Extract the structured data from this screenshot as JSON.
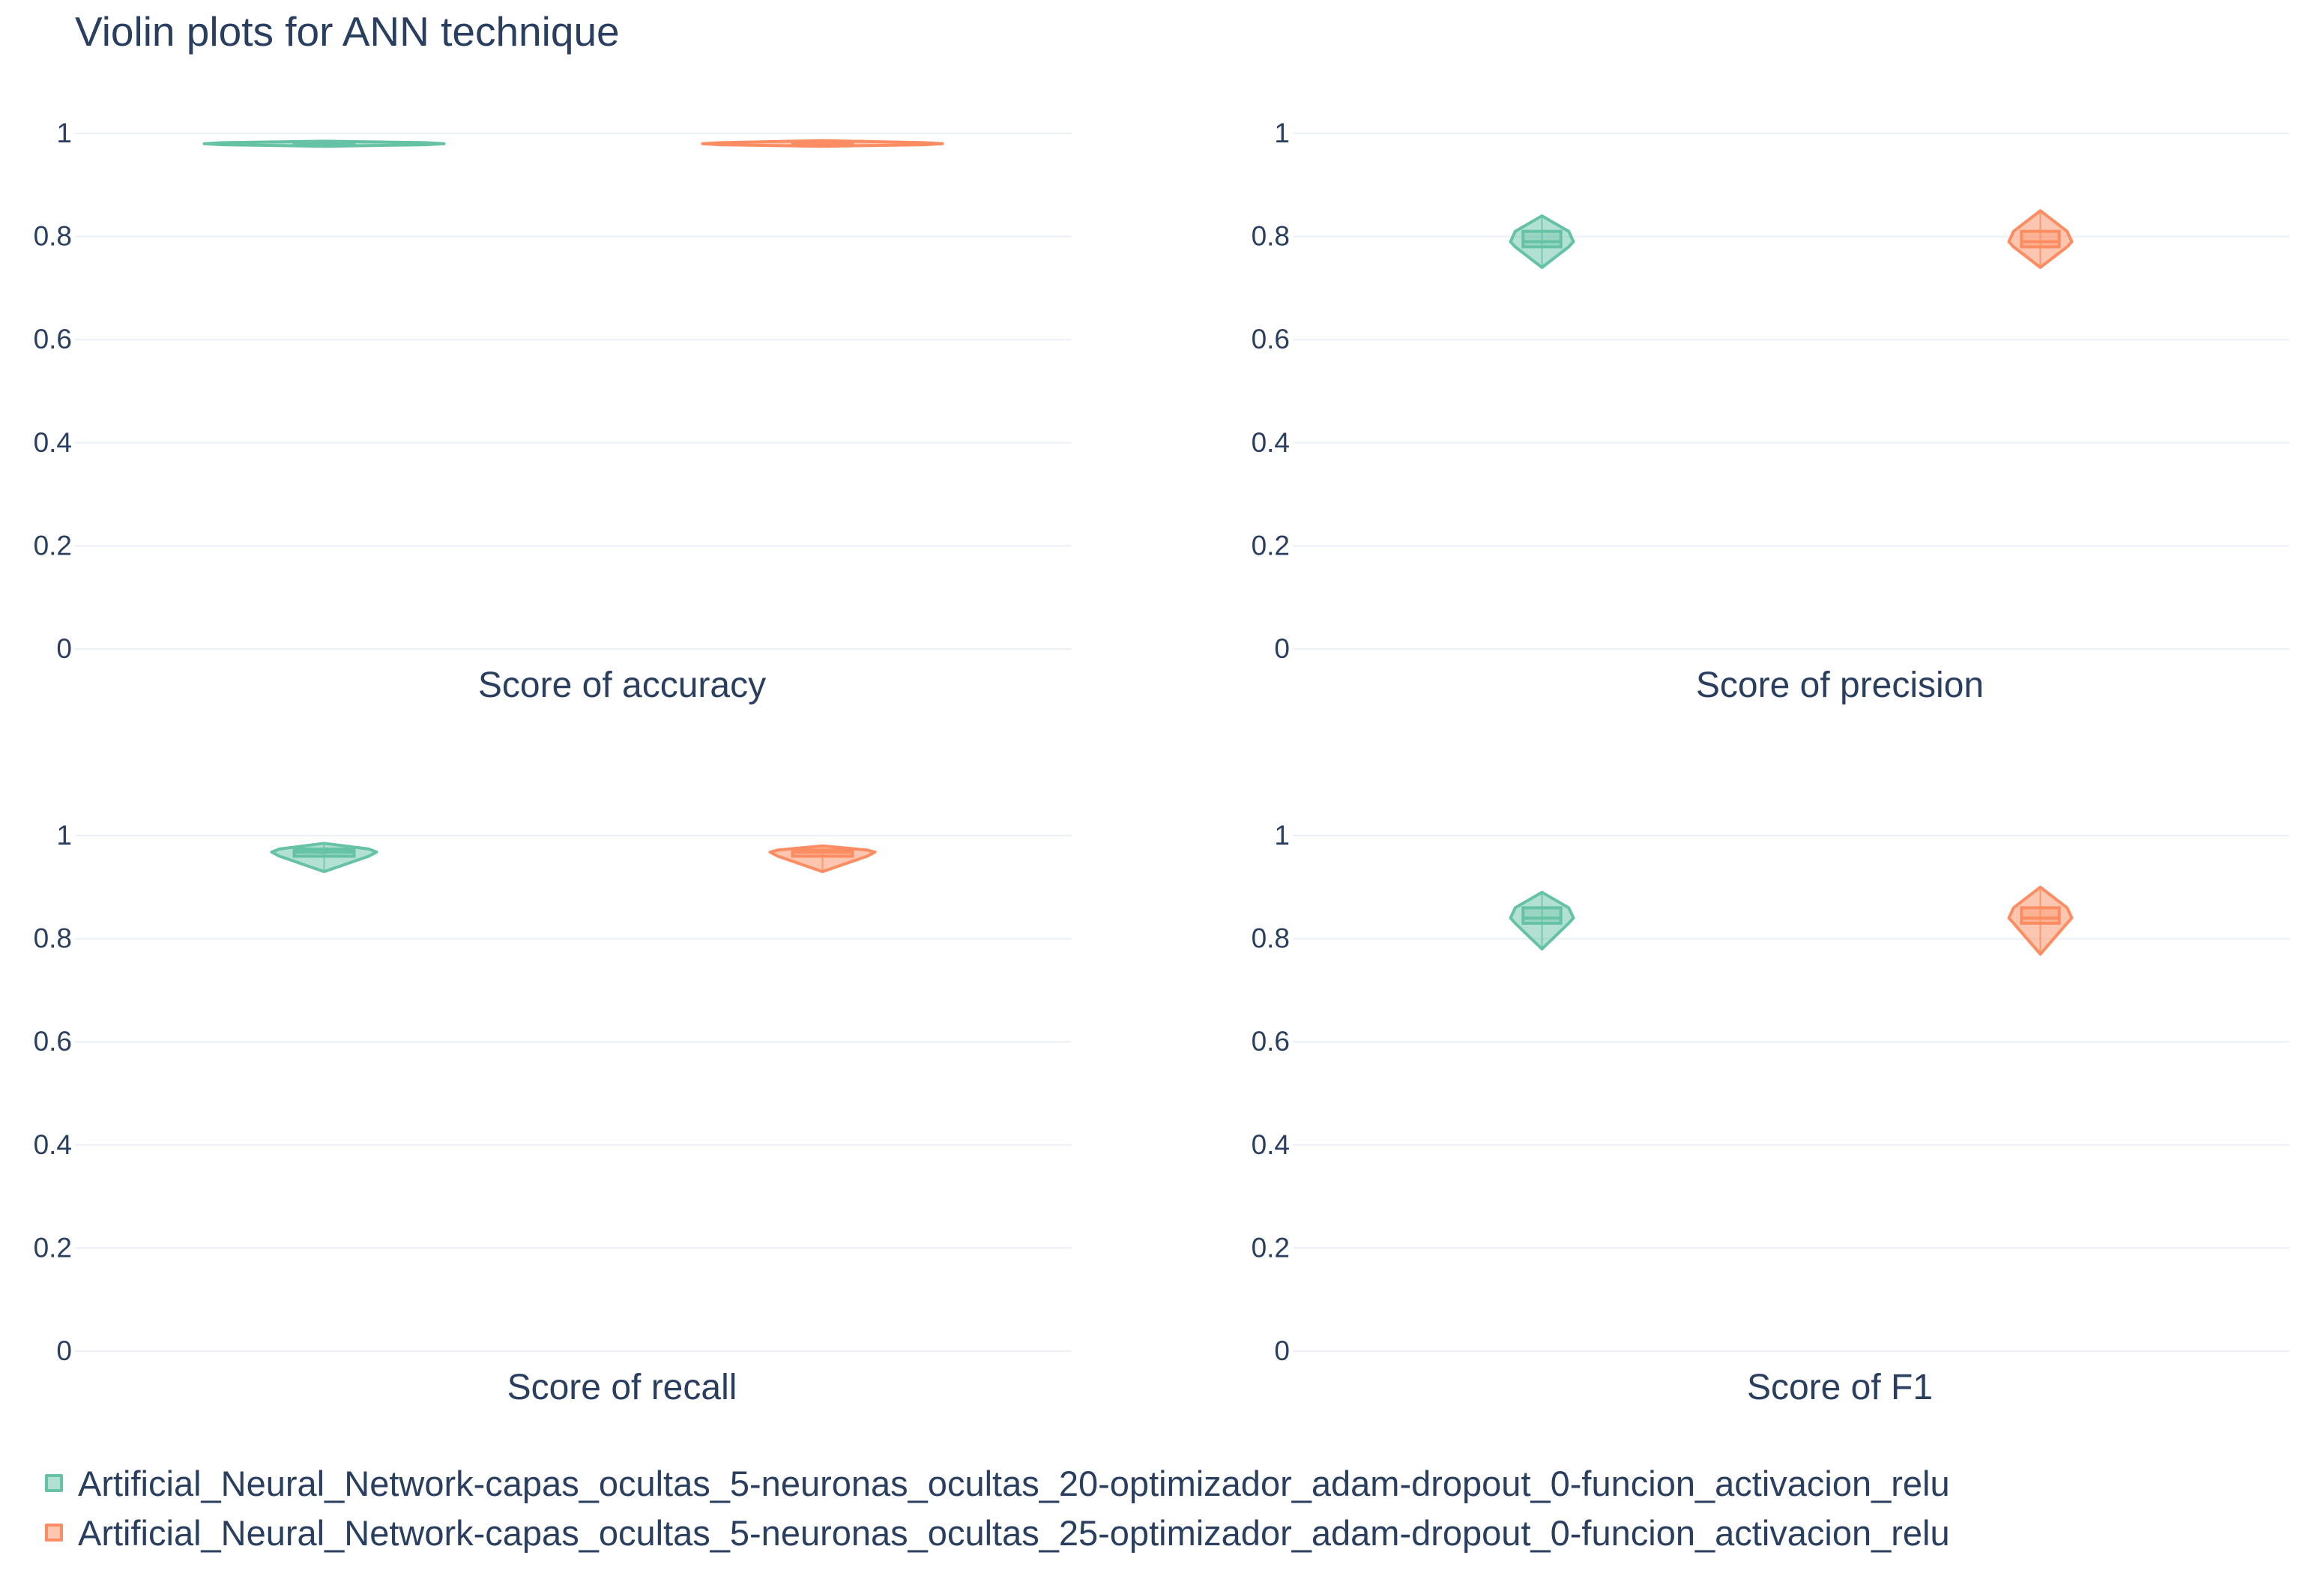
{
  "chart_data": {
    "type": "violin",
    "title": "Violin plots for ANN technique",
    "legend_position": "bottom",
    "series": [
      {
        "name": "Artificial_Neural_Network-capas_ocultas_5-neuronas_ocultas_20-optimizador_adam-dropout_0-funcion_activacion_relu",
        "color": "#66c2a5"
      },
      {
        "name": "Artificial_Neural_Network-capas_ocultas_5-neuronas_ocultas_25-optimizador_adam-dropout_0-funcion_activacion_relu",
        "color": "#fc8d62"
      }
    ],
    "subplots": [
      {
        "xlabel": "Score of accuracy",
        "ylim": [
          0,
          1
        ],
        "yticks": [
          "0",
          "0.2",
          "0.4",
          "0.6",
          "0.8",
          "1"
        ],
        "violins": [
          {
            "min": 0.975,
            "q1": 0.978,
            "median": 0.98,
            "q3": 0.982,
            "max": 0.985
          },
          {
            "min": 0.975,
            "q1": 0.978,
            "median": 0.98,
            "q3": 0.982,
            "max": 0.986
          }
        ]
      },
      {
        "xlabel": "Score of precision",
        "ylim": [
          0,
          1
        ],
        "yticks": [
          "0",
          "0.2",
          "0.4",
          "0.6",
          "0.8",
          "1"
        ],
        "violins": [
          {
            "min": 0.74,
            "q1": 0.78,
            "median": 0.79,
            "q3": 0.81,
            "max": 0.84
          },
          {
            "min": 0.74,
            "q1": 0.78,
            "median": 0.79,
            "q3": 0.81,
            "max": 0.85
          }
        ]
      },
      {
        "xlabel": "Score of recall",
        "ylim": [
          0,
          1
        ],
        "yticks": [
          "0",
          "0.2",
          "0.4",
          "0.6",
          "0.8",
          "1"
        ],
        "violins": [
          {
            "min": 0.93,
            "q1": 0.96,
            "median": 0.968,
            "q3": 0.974,
            "max": 0.985
          },
          {
            "min": 0.93,
            "q1": 0.96,
            "median": 0.968,
            "q3": 0.972,
            "max": 0.98
          }
        ]
      },
      {
        "xlabel": "Score of F1",
        "ylim": [
          0,
          1
        ],
        "yticks": [
          "0",
          "0.2",
          "0.4",
          "0.6",
          "0.8",
          "1"
        ],
        "violins": [
          {
            "min": 0.78,
            "q1": 0.83,
            "median": 0.84,
            "q3": 0.86,
            "max": 0.89
          },
          {
            "min": 0.77,
            "q1": 0.83,
            "median": 0.84,
            "q3": 0.86,
            "max": 0.9
          }
        ]
      }
    ]
  }
}
